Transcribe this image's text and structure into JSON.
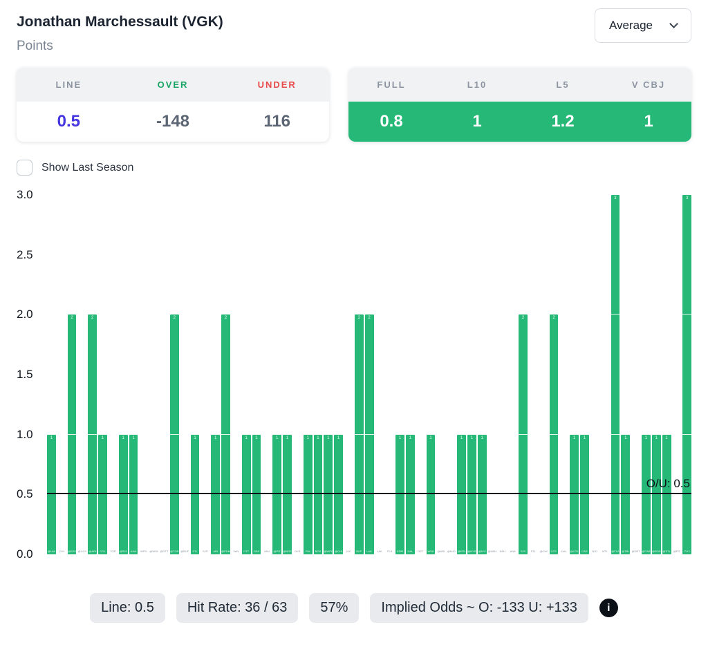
{
  "header": {
    "title": "Jonathan Marchessault (VGK)",
    "subtitle": "Points"
  },
  "controls": {
    "dropdown_value": "Average"
  },
  "line_card": {
    "headers": [
      "LINE",
      "OVER",
      "UNDER"
    ],
    "line": "0.5",
    "over": "-148",
    "under": "116",
    "line_color": "#4636e0",
    "over_color": "#19a564",
    "under_color": "#e84c4c"
  },
  "splits_card": {
    "headers": [
      "FULL",
      "L10",
      "L5",
      "V CBJ"
    ],
    "values": [
      "0.8",
      "1",
      "1.2",
      "1"
    ],
    "row_color": "#25b876"
  },
  "checkbox": {
    "label": "Show Last Season",
    "checked": false
  },
  "chart_data": {
    "type": "bar",
    "title": "",
    "xlabel": "",
    "ylabel": "",
    "ylim": [
      0,
      3
    ],
    "yticks": [
      0.0,
      0.5,
      1.0,
      1.5,
      2.0,
      2.5,
      3.0
    ],
    "ytick_labels": [
      "0.0",
      "0.5",
      "1.0",
      "1.5",
      "2.0",
      "2.5",
      "3.0"
    ],
    "grid": false,
    "legend": false,
    "bar_color": "#25b876",
    "line": {
      "value": 0.5,
      "label": "O/U: 0.5",
      "color": "#0c1118"
    },
    "categories": [
      "@LAK",
      "CHI",
      "@SJS",
      "@CGY",
      "@ARI",
      "COL",
      "TOR",
      "@SJS",
      "ANA",
      "WPG",
      "@WSH",
      "@OTT",
      "@TOR",
      "@BUF",
      "STL",
      "SJS",
      "ARI",
      "@EDM",
      "VAN",
      "OTT",
      "SEA",
      "VAN",
      "@PIT",
      "@BOS",
      "NYR",
      "PHI",
      "BOS",
      "@WPG",
      "@CHI",
      "NYI",
      "BUF",
      "LAK",
      "LAK",
      "FLA",
      "EDM",
      "DAL",
      "DET",
      "WSH",
      "@ARI",
      "@NJD",
      "@MTL",
      "@NYR",
      "@NYI",
      "@NSH",
      "NSH",
      "ANA",
      "SJS",
      "STL",
      "@CHI",
      "CGY",
      "DAL",
      "@COL",
      "CAR",
      "NJD",
      "MTL",
      "@FLA",
      "@TBL",
      "@DET",
      "@CAR",
      "@BOS",
      "@STL",
      "@PIT",
      "CGY"
    ],
    "values": [
      1,
      0,
      2,
      0,
      2,
      1,
      0,
      1,
      1,
      0,
      0,
      0,
      2,
      0,
      1,
      0,
      1,
      2,
      0,
      1,
      1,
      0,
      1,
      1,
      0,
      1,
      1,
      1,
      1,
      0,
      2,
      2,
      0,
      0,
      1,
      1,
      0,
      1,
      0,
      0,
      1,
      1,
      1,
      0,
      0,
      0,
      2,
      0,
      0,
      2,
      0,
      1,
      1,
      0,
      0,
      3,
      1,
      0,
      1,
      1,
      1,
      0,
      3
    ]
  },
  "footer": {
    "badges": [
      "Line: 0.5",
      "Hit Rate: 36 / 63",
      "57%",
      "Implied Odds ~ O: -133 U: +133"
    ]
  }
}
